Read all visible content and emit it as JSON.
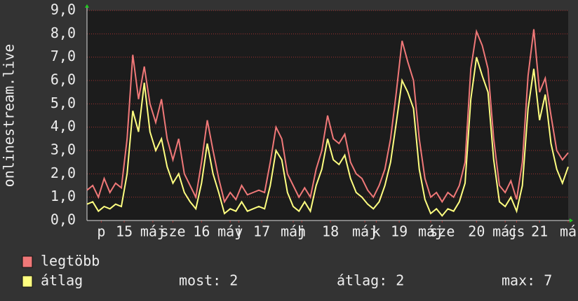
{
  "chart_data": {
    "type": "line",
    "y_label": "onlinestream.live",
    "x": [
      0,
      2,
      4,
      6,
      8,
      10,
      12,
      14,
      16,
      18,
      20,
      22,
      24,
      26,
      28,
      30,
      32,
      34,
      36,
      38,
      40,
      42,
      44,
      46,
      48,
      50,
      52,
      54,
      56,
      58,
      60,
      62,
      64,
      66,
      68,
      70,
      72,
      74,
      76,
      78,
      80,
      82,
      84,
      86,
      88,
      90,
      92,
      94,
      96,
      98,
      100,
      102,
      104,
      106,
      108,
      110,
      112,
      114,
      116,
      118,
      120,
      122,
      124,
      126,
      128,
      130,
      132,
      134,
      136,
      138,
      140,
      142,
      144,
      146,
      148,
      150,
      152,
      154,
      156,
      158,
      160,
      162,
      164,
      166,
      168
    ],
    "series": [
      {
        "name": "legtöbb",
        "color": "#f07878",
        "values": [
          1.3,
          1.5,
          1.0,
          1.8,
          1.2,
          1.6,
          1.4,
          3.5,
          7.1,
          5.2,
          6.6,
          5.0,
          4.2,
          5.2,
          3.5,
          2.6,
          3.5,
          2.0,
          1.5,
          1.0,
          2.5,
          4.3,
          3.0,
          1.8,
          0.8,
          1.2,
          0.9,
          1.5,
          1.1,
          1.2,
          1.3,
          1.2,
          2.5,
          4.0,
          3.5,
          2.0,
          1.5,
          1.0,
          1.4,
          1.0,
          2.2,
          3.0,
          4.5,
          3.5,
          3.3,
          3.7,
          2.5,
          2.0,
          1.8,
          1.3,
          1.0,
          1.5,
          2.2,
          3.5,
          5.5,
          7.7,
          6.8,
          6.0,
          3.5,
          1.8,
          1.0,
          1.2,
          0.8,
          1.2,
          1.0,
          1.5,
          2.5,
          6.5,
          8.1,
          7.5,
          6.5,
          3.5,
          1.5,
          1.2,
          1.7,
          0.9,
          2.5,
          6.2,
          8.2,
          5.5,
          6.1,
          4.5,
          3.0,
          2.6,
          2.9
        ]
      },
      {
        "name": "átlag",
        "color": "#ffff80",
        "values": [
          0.7,
          0.8,
          0.4,
          0.6,
          0.5,
          0.7,
          0.6,
          2.0,
          4.7,
          3.8,
          5.9,
          3.8,
          3.0,
          3.5,
          2.3,
          1.6,
          2.0,
          1.2,
          0.8,
          0.5,
          1.6,
          3.3,
          2.0,
          1.2,
          0.3,
          0.5,
          0.4,
          0.8,
          0.4,
          0.5,
          0.6,
          0.5,
          1.5,
          3.0,
          2.6,
          1.2,
          0.6,
          0.4,
          0.8,
          0.4,
          1.5,
          2.2,
          3.5,
          2.6,
          2.4,
          2.8,
          1.8,
          1.2,
          1.0,
          0.7,
          0.5,
          0.8,
          1.5,
          2.5,
          4.2,
          6.0,
          5.5,
          4.8,
          2.2,
          0.9,
          0.3,
          0.5,
          0.2,
          0.5,
          0.4,
          0.8,
          1.6,
          5.2,
          7.0,
          6.2,
          5.5,
          2.6,
          0.8,
          0.6,
          1.0,
          0.4,
          1.5,
          4.8,
          6.5,
          4.3,
          5.4,
          3.3,
          2.2,
          1.6,
          2.3
        ]
      }
    ],
    "xlim": [
      0,
      168
    ],
    "xticks": [
      {
        "value": 5,
        "label": "p"
      },
      {
        "value": 13,
        "label": "15"
      },
      {
        "value": 23,
        "label": "máj"
      },
      {
        "value": 30,
        "label": "sze"
      },
      {
        "value": 40,
        "label": "16"
      },
      {
        "value": 50,
        "label": "máj"
      },
      {
        "value": 53,
        "label": "v"
      },
      {
        "value": 61,
        "label": "17"
      },
      {
        "value": 72,
        "label": "máj"
      },
      {
        "value": 75,
        "label": "h"
      },
      {
        "value": 85,
        "label": "18"
      },
      {
        "value": 97,
        "label": "máj"
      },
      {
        "value": 101,
        "label": "k"
      },
      {
        "value": 109,
        "label": "19"
      },
      {
        "value": 120,
        "label": "máj"
      },
      {
        "value": 124,
        "label": "sze"
      },
      {
        "value": 136,
        "label": "20"
      },
      {
        "value": 146,
        "label": "máj"
      },
      {
        "value": 150,
        "label": "cs"
      },
      {
        "value": 158,
        "label": "21"
      },
      {
        "value": 168,
        "label": "má"
      }
    ],
    "ylim": [
      0,
      9
    ],
    "yticks": [
      {
        "value": 0,
        "label": "0,0"
      },
      {
        "value": 1,
        "label": "1,0"
      },
      {
        "value": 2,
        "label": "2,0"
      },
      {
        "value": 3,
        "label": "3,0"
      },
      {
        "value": 4,
        "label": "4,0"
      },
      {
        "value": 5,
        "label": "5,0"
      },
      {
        "value": 6,
        "label": "6,0"
      },
      {
        "value": 7,
        "label": "7,0"
      },
      {
        "value": 8,
        "label": "8,0"
      },
      {
        "value": 9,
        "label": "9,0"
      }
    ],
    "grid": true,
    "stats": [
      "most: 2",
      "átlag: 2",
      "max: 7"
    ]
  }
}
